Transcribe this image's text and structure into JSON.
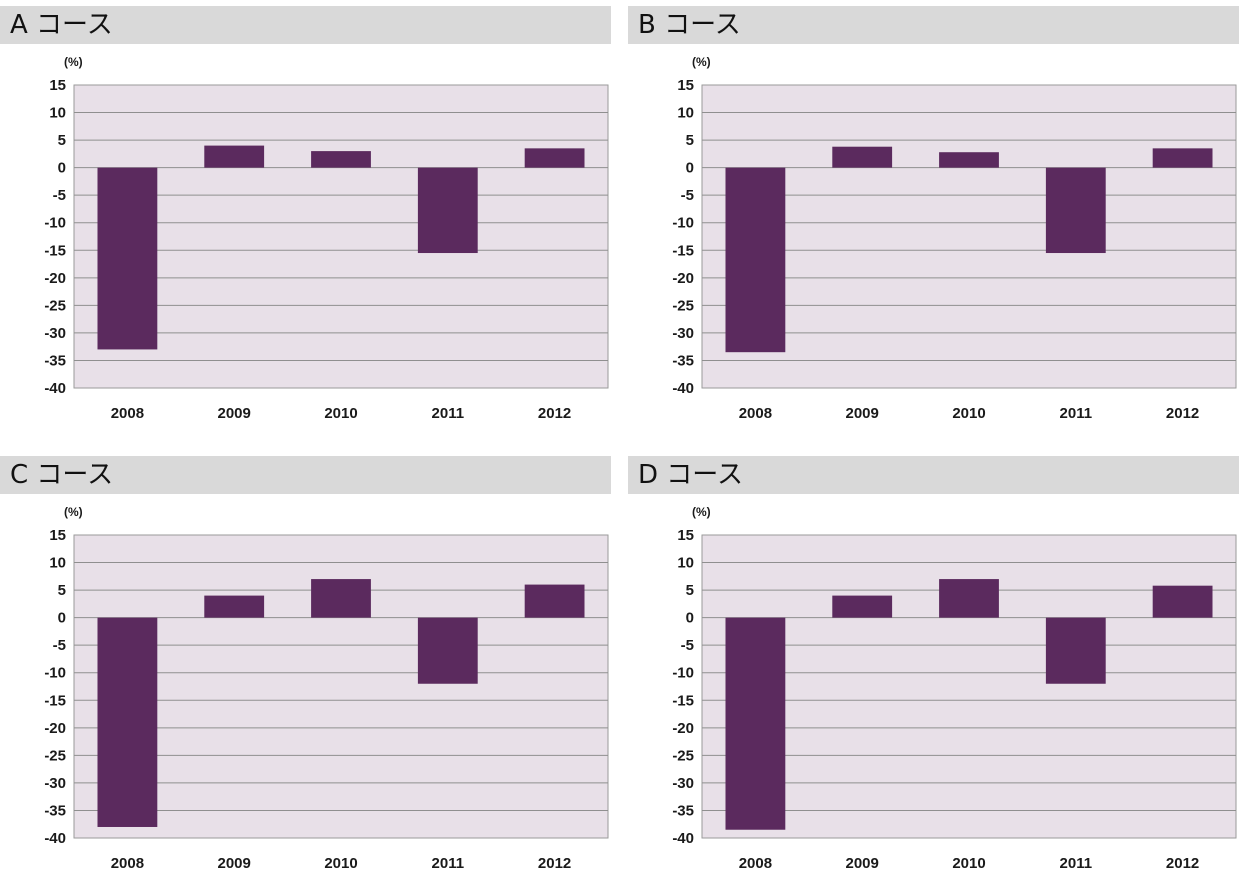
{
  "chart_data": [
    {
      "type": "bar",
      "title": "A コース",
      "unit_label": "(%)",
      "categories": [
        "2008",
        "2009",
        "2010",
        "2011",
        "2012"
      ],
      "values": [
        -33,
        4,
        3,
        -15.5,
        3.5
      ],
      "ylim": [
        -40,
        15
      ],
      "y_ticks": [
        15,
        10,
        5,
        0,
        -5,
        -10,
        -15,
        -20,
        -25,
        -30,
        -35,
        -40
      ],
      "grid": true,
      "bar_color": "#5b2a5e",
      "plot_background": "#e8e0e8"
    },
    {
      "type": "bar",
      "title": "B コース",
      "unit_label": "(%)",
      "categories": [
        "2008",
        "2009",
        "2010",
        "2011",
        "2012"
      ],
      "values": [
        -33.5,
        3.8,
        2.8,
        -15.5,
        3.5
      ],
      "ylim": [
        -40,
        15
      ],
      "y_ticks": [
        15,
        10,
        5,
        0,
        -5,
        -10,
        -15,
        -20,
        -25,
        -30,
        -35,
        -40
      ],
      "grid": true,
      "bar_color": "#5b2a5e",
      "plot_background": "#e8e0e8"
    },
    {
      "type": "bar",
      "title": "C コース",
      "unit_label": "(%)",
      "categories": [
        "2008",
        "2009",
        "2010",
        "2011",
        "2012"
      ],
      "values": [
        -38,
        4,
        7,
        -12,
        6
      ],
      "ylim": [
        -40,
        15
      ],
      "y_ticks": [
        15,
        10,
        5,
        0,
        -5,
        -10,
        -15,
        -20,
        -25,
        -30,
        -35,
        -40
      ],
      "grid": true,
      "bar_color": "#5b2a5e",
      "plot_background": "#e8e0e8"
    },
    {
      "type": "bar",
      "title": "D コース",
      "unit_label": "(%)",
      "categories": [
        "2008",
        "2009",
        "2010",
        "2011",
        "2012"
      ],
      "values": [
        -38.5,
        4,
        7,
        -12,
        5.8
      ],
      "ylim": [
        -40,
        15
      ],
      "y_ticks": [
        15,
        10,
        5,
        0,
        -5,
        -10,
        -15,
        -20,
        -25,
        -30,
        -35,
        -40
      ],
      "grid": true,
      "bar_color": "#5b2a5e",
      "plot_background": "#e8e0e8"
    }
  ]
}
